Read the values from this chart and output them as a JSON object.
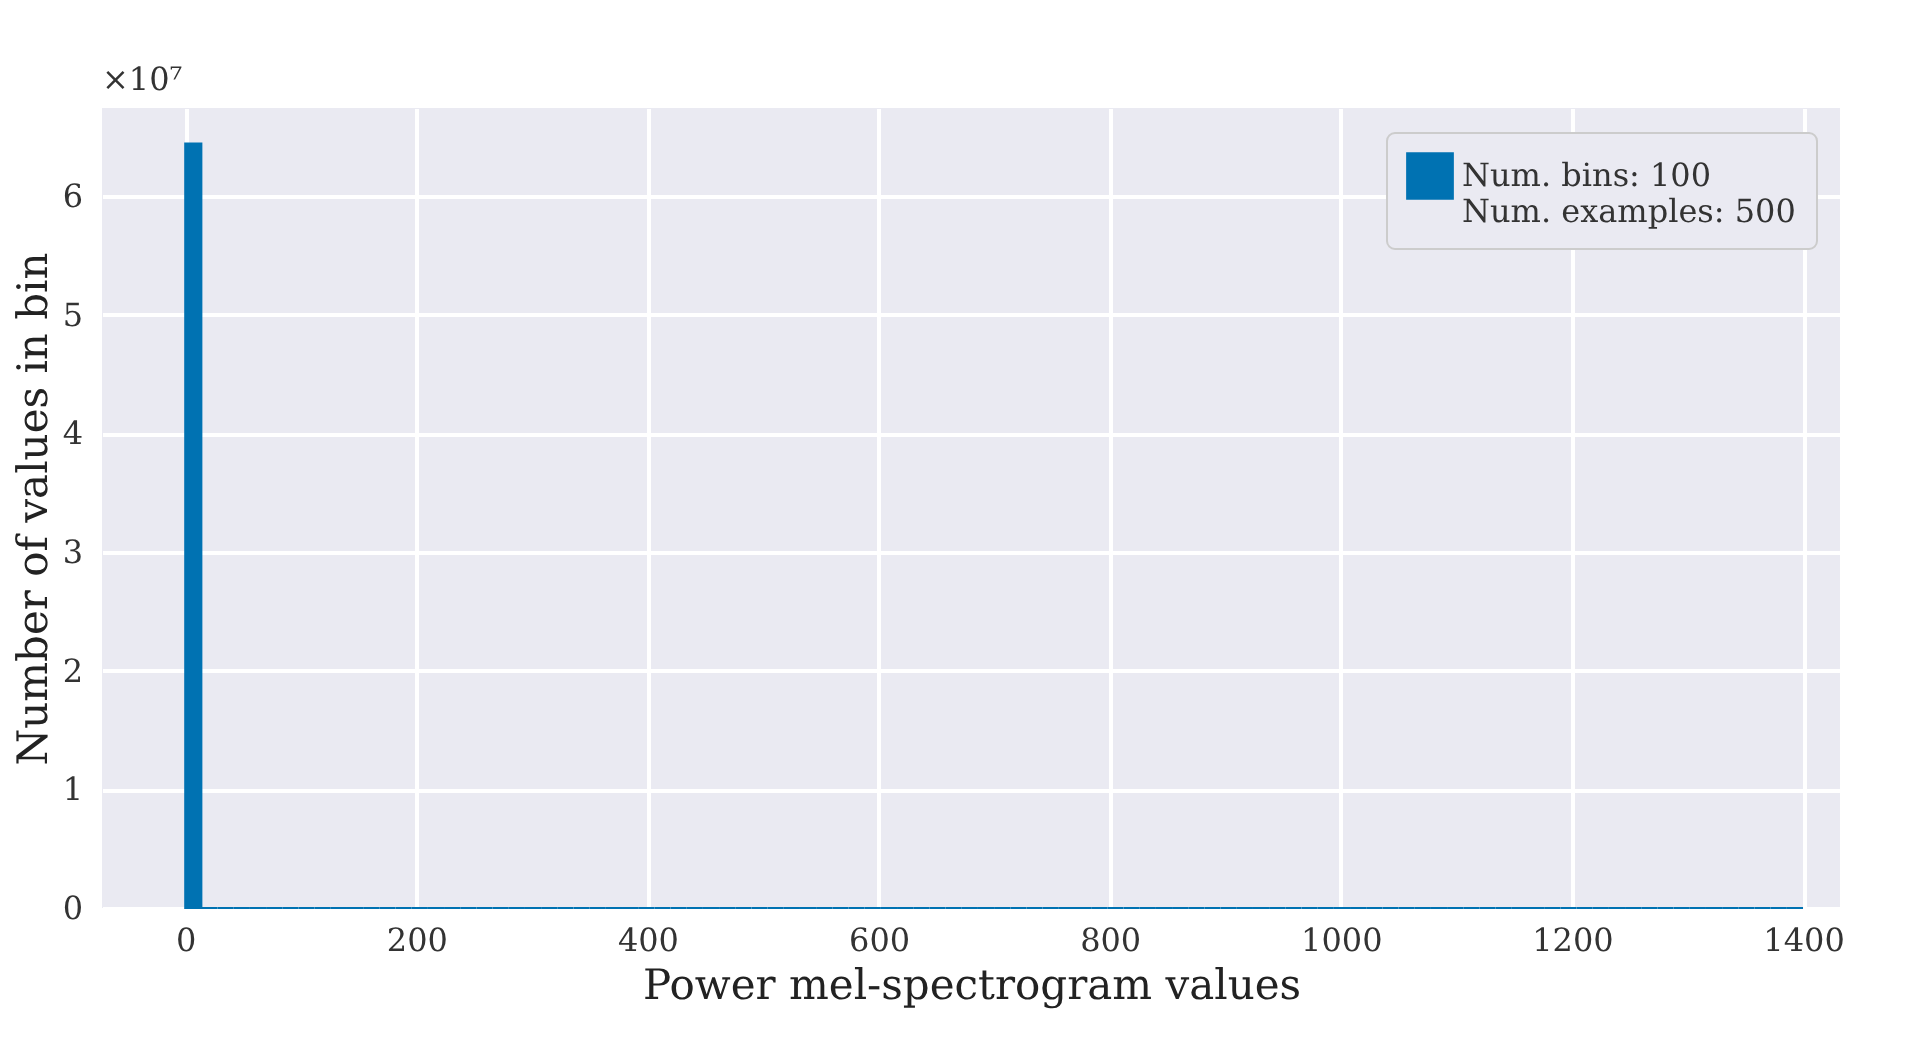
{
  "chart_data": {
    "type": "histogram",
    "xlabel": "Power mel-spectrogram values",
    "ylabel": "Number of values in bin",
    "annotations": [
      "×10⁷"
    ],
    "bins": [
      0,
      14,
      28,
      42,
      56,
      70,
      84,
      98,
      112,
      126,
      140,
      154,
      168,
      182,
      196,
      210,
      224,
      238,
      252,
      266,
      280,
      294,
      308,
      322,
      336,
      350,
      364,
      378,
      392,
      406,
      420,
      434,
      448,
      462,
      476,
      490,
      504,
      518,
      532,
      546,
      560,
      574,
      588,
      602,
      616,
      630,
      644,
      658,
      672,
      686,
      700,
      714,
      728,
      742,
      756,
      770,
      784,
      798,
      812,
      826,
      840,
      854,
      868,
      882,
      896,
      910,
      924,
      938,
      952,
      966,
      980,
      994,
      1008,
      1022,
      1036,
      1050,
      1064,
      1078,
      1092,
      1106,
      1120,
      1134,
      1148,
      1162,
      1176,
      1190,
      1204,
      1218,
      1232,
      1246,
      1260,
      1274,
      1288,
      1302,
      1316,
      1330,
      1344,
      1358,
      1372,
      1386,
      1400
    ],
    "series": [
      {
        "name": "Num. bins: 100\nNum. examples: 500",
        "color": "#0072b2",
        "values": [
          6.44,
          0,
          0,
          0,
          0,
          0,
          0,
          0,
          0,
          0,
          0,
          0,
          0,
          0,
          0,
          0,
          0,
          0,
          0,
          0,
          0,
          0,
          0,
          0,
          0,
          0,
          0,
          0,
          0,
          0,
          0,
          0,
          0,
          0,
          0,
          0,
          0,
          0,
          0,
          0,
          0,
          0,
          0,
          0,
          0,
          0,
          0,
          0,
          0,
          0,
          0,
          0,
          0,
          0,
          0,
          0,
          0,
          0,
          0,
          0,
          0,
          0,
          0,
          0,
          0,
          0,
          0,
          0,
          0,
          0,
          0,
          0,
          0,
          0,
          0,
          0,
          0,
          0,
          0,
          0,
          0,
          0,
          0,
          0,
          0,
          0,
          0,
          0,
          0,
          0,
          0,
          0,
          0,
          0,
          0,
          0,
          0,
          0,
          0,
          0
        ]
      }
    ],
    "xlim": [
      -72,
      1432
    ],
    "ylim": [
      0,
      6.74
    ],
    "xticks": [
      0,
      200,
      400,
      600,
      800,
      1000,
      1200,
      1400
    ],
    "yticks": [
      0,
      1,
      2,
      3,
      4,
      5,
      6
    ],
    "grid": true,
    "legend": "top right"
  }
}
